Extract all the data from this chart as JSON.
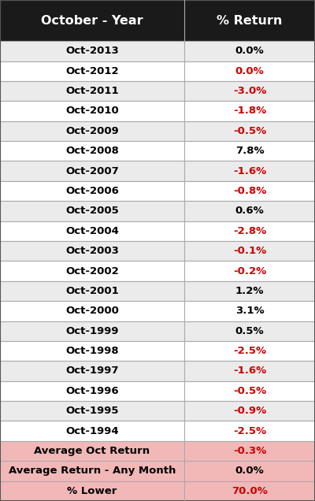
{
  "header": [
    "October - Year",
    "% Return"
  ],
  "rows": [
    [
      "Oct-2013",
      "0.0%",
      false
    ],
    [
      "Oct-2012",
      "0.0%",
      true
    ],
    [
      "Oct-2011",
      "-3.0%",
      true
    ],
    [
      "Oct-2010",
      "-1.8%",
      true
    ],
    [
      "Oct-2009",
      "-0.5%",
      true
    ],
    [
      "Oct-2008",
      "7.8%",
      false
    ],
    [
      "Oct-2007",
      "-1.6%",
      true
    ],
    [
      "Oct-2006",
      "-0.8%",
      true
    ],
    [
      "Oct-2005",
      "0.6%",
      false
    ],
    [
      "Oct-2004",
      "-2.8%",
      true
    ],
    [
      "Oct-2003",
      "-0.1%",
      true
    ],
    [
      "Oct-2002",
      "-0.2%",
      true
    ],
    [
      "Oct-2001",
      "1.2%",
      false
    ],
    [
      "Oct-2000",
      "3.1%",
      false
    ],
    [
      "Oct-1999",
      "0.5%",
      false
    ],
    [
      "Oct-1998",
      "-2.5%",
      true
    ],
    [
      "Oct-1997",
      "-1.6%",
      true
    ],
    [
      "Oct-1996",
      "-0.5%",
      true
    ],
    [
      "Oct-1995",
      "-0.9%",
      true
    ],
    [
      "Oct-1994",
      "-2.5%",
      true
    ]
  ],
  "summary_rows": [
    [
      "Average Oct Return",
      "-0.3%",
      true
    ],
    [
      "Average Return - Any Month",
      "0.0%",
      false
    ],
    [
      "% Lower",
      "70.0%",
      true
    ]
  ],
  "negative_color": "#CC0000",
  "positive_color": "#000000",
  "header_bg": "#1a1a1a",
  "header_text": "#ffffff",
  "summary_bg": "#f2b8b8",
  "row_bg_odd": "#ebebeb",
  "row_bg_even": "#ffffff",
  "border_color": "#aaaaaa",
  "col_split": 0.585,
  "header_fontsize": 11.5,
  "row_fontsize": 9.5
}
